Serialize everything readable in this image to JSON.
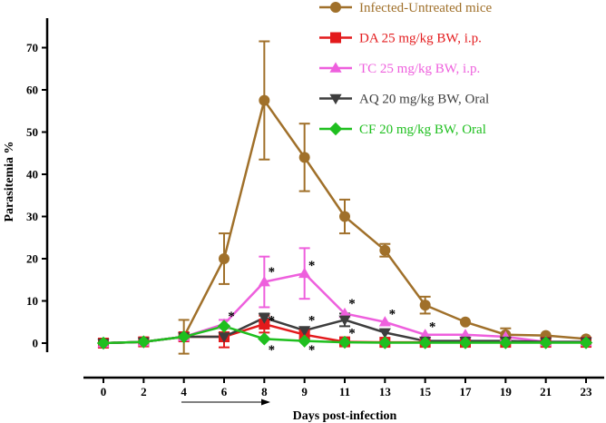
{
  "chart_data": {
    "type": "line",
    "xlabel": "Days post-infection",
    "ylabel": "Parasitemia %",
    "categories": [
      "0",
      "2",
      "4",
      "6",
      "8",
      "9",
      "11",
      "13",
      "15",
      "17",
      "19",
      "21",
      "23"
    ],
    "ylim": [
      0,
      70
    ],
    "yticks": [
      0,
      10,
      20,
      30,
      40,
      50,
      60,
      70
    ],
    "grid": false,
    "legend_position": "top-right",
    "series": [
      {
        "name": "Infected-Untreated mice",
        "color": "#A0702A",
        "marker": "circle",
        "values": [
          0,
          0.3,
          1.5,
          20,
          57.5,
          44,
          30,
          22,
          9,
          5,
          2,
          1.8,
          1
        ],
        "errors": [
          0,
          0,
          4,
          6,
          14,
          8,
          4,
          1.5,
          2,
          0,
          1.5,
          0,
          0
        ]
      },
      {
        "name": "DA 25 mg/kg BW,  i.p.",
        "color": "#E31A1C",
        "marker": "square",
        "values": [
          0,
          0.3,
          1.5,
          1.5,
          4.5,
          2,
          0.3,
          0.2,
          0.2,
          0.2,
          0.2,
          0.2,
          0.2
        ],
        "errors": [
          0,
          0,
          0,
          2.5,
          2,
          1,
          0,
          0,
          0,
          0,
          0,
          0,
          0
        ]
      },
      {
        "name": "TC 25 mg/kg BW, i.p.",
        "color": "#EE5FDD",
        "marker": "triangle-up",
        "values": [
          0,
          0.3,
          1.5,
          4.5,
          14.5,
          16.5,
          7,
          5,
          2,
          2,
          1.5,
          0.3,
          0.3
        ],
        "errors": [
          0,
          0,
          0,
          1,
          6,
          6,
          0,
          0,
          0,
          0,
          0,
          0,
          0
        ]
      },
      {
        "name": "AQ  20 mg/kg BW, Oral",
        "color": "#3D3D3D",
        "marker": "triangle-down",
        "values": [
          0,
          0.3,
          1.5,
          1.5,
          6,
          3,
          5.5,
          2.5,
          0.5,
          0.5,
          0.5,
          0.3,
          0.3
        ],
        "errors": [
          0,
          0,
          0,
          0,
          1,
          0,
          1.5,
          0,
          0,
          0,
          0,
          0,
          0
        ]
      },
      {
        "name": "CF 20 mg/kg BW, Oral",
        "color": "#1FBF1F",
        "marker": "diamond",
        "values": [
          0,
          0.3,
          1.5,
          4,
          1,
          0.5,
          0.2,
          0.1,
          0.1,
          0.1,
          0.1,
          0.1,
          0.1
        ],
        "errors": [
          0,
          0,
          0,
          0,
          0,
          0,
          0,
          0,
          0,
          0,
          0,
          0,
          0
        ]
      }
    ],
    "annotations": [
      {
        "text": "*",
        "x": "6",
        "y": 6.5
      },
      {
        "text": "*",
        "x": "8",
        "y": 17
      },
      {
        "text": "*",
        "x": "8",
        "y": 5.5
      },
      {
        "text": "*",
        "x": "8",
        "y": -1.5
      },
      {
        "text": "*",
        "x": "9",
        "y": 18.5
      },
      {
        "text": "*",
        "x": "9",
        "y": 5.5
      },
      {
        "text": "*",
        "x": "9",
        "y": -1.5
      },
      {
        "text": "*",
        "x": "11",
        "y": 9.5
      },
      {
        "text": "*",
        "x": "11",
        "y": 2.5
      },
      {
        "text": "*",
        "x": "13",
        "y": 7
      },
      {
        "text": "*",
        "x": "15",
        "y": 4
      }
    ]
  }
}
